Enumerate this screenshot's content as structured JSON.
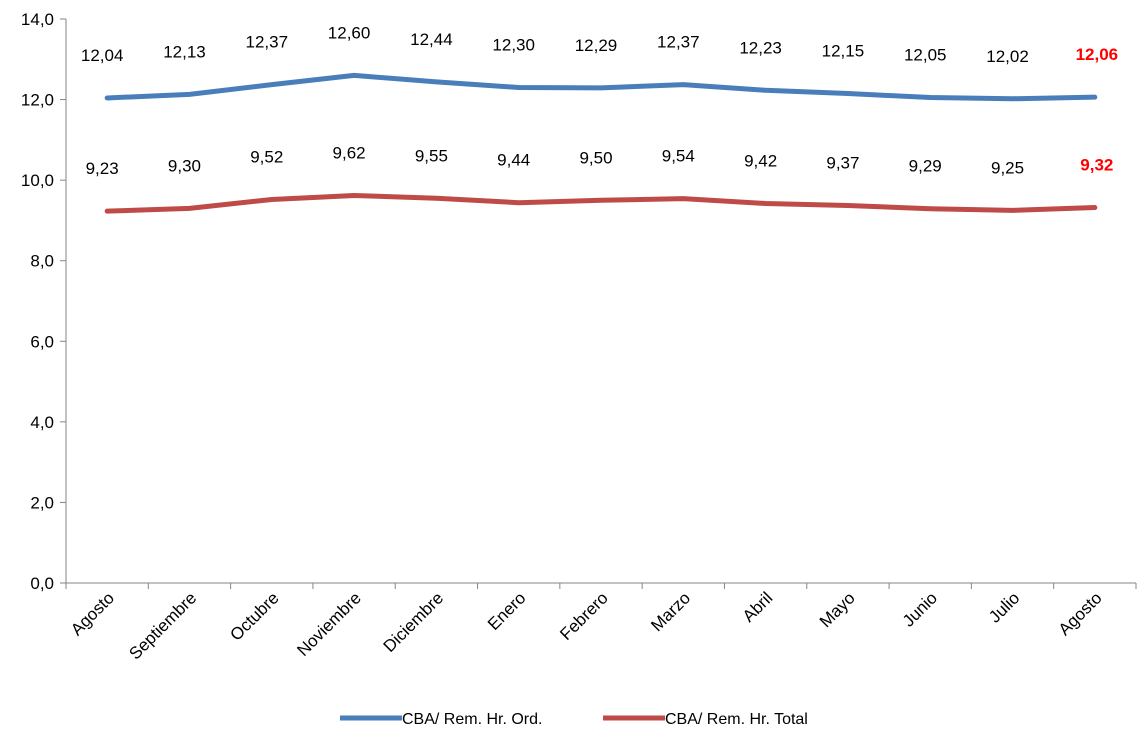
{
  "chart_data": {
    "type": "line",
    "categories": [
      "Agosto",
      "Septiembre",
      "Octubre",
      "Noviembre",
      "Diciembre",
      "Enero",
      "Febrero",
      "Marzo",
      "Abril",
      "Mayo",
      "Junio",
      "Julio",
      "Agosto"
    ],
    "series": [
      {
        "name": "CBA/ Rem. Hr. Ord.",
        "color": "#4a7ebb",
        "values": [
          12.04,
          12.13,
          12.37,
          12.6,
          12.44,
          12.3,
          12.29,
          12.37,
          12.23,
          12.15,
          12.05,
          12.02,
          12.06
        ],
        "labels": [
          "12,04",
          "12,13",
          "12,37",
          "12,60",
          "12,44",
          "12,30",
          "12,29",
          "12,37",
          "12,23",
          "12,15",
          "12,05",
          "12,02",
          "12,06"
        ]
      },
      {
        "name": "CBA/ Rem. Hr. Total",
        "color": "#be4b48",
        "values": [
          9.23,
          9.3,
          9.52,
          9.62,
          9.55,
          9.44,
          9.5,
          9.54,
          9.42,
          9.37,
          9.29,
          9.25,
          9.32
        ],
        "labels": [
          "9,23",
          "9,30",
          "9,52",
          "9,62",
          "9,55",
          "9,44",
          "9,50",
          "9,54",
          "9,42",
          "9,37",
          "9,29",
          "9,25",
          "9,32"
        ]
      }
    ],
    "highlight_last_point_color": "#ff0000",
    "ylim": [
      0,
      14
    ],
    "yticks": [
      0,
      2,
      4,
      6,
      8,
      10,
      12,
      14
    ],
    "ytick_labels": [
      "0,0",
      "2,0",
      "4,0",
      "6,0",
      "8,0",
      "10,0",
      "12,0",
      "14,0"
    ],
    "grid": false,
    "legend_position": "bottom",
    "title": "",
    "xlabel": "",
    "ylabel": ""
  }
}
